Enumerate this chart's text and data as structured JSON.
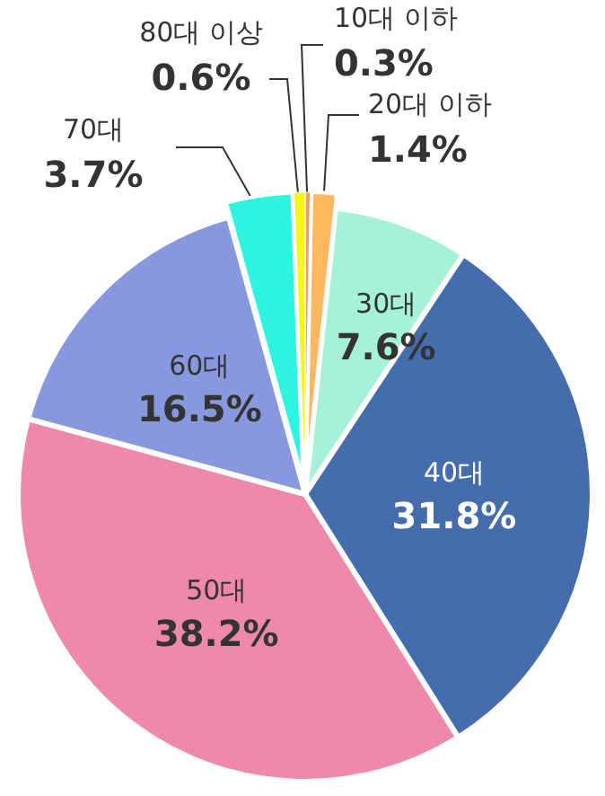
{
  "chart_data": {
    "type": "pie",
    "categories": [
      "10대 이하",
      "20대 이하",
      "30대",
      "40대",
      "50대",
      "60대",
      "70대",
      "80대 이상"
    ],
    "values": [
      0.3,
      1.4,
      7.6,
      31.8,
      38.2,
      16.5,
      3.7,
      0.6
    ],
    "colors": [
      "#f5a04a",
      "#ffb860",
      "#a6f2d6",
      "#456cad",
      "#ee89a9",
      "#8898de",
      "#2ef5e0",
      "#f7f51a"
    ],
    "value_labels": [
      "0.3%",
      "1.4%",
      "7.6%",
      "31.8%",
      "38.2%",
      "16.5%",
      "3.7%",
      "0.6%"
    ]
  }
}
